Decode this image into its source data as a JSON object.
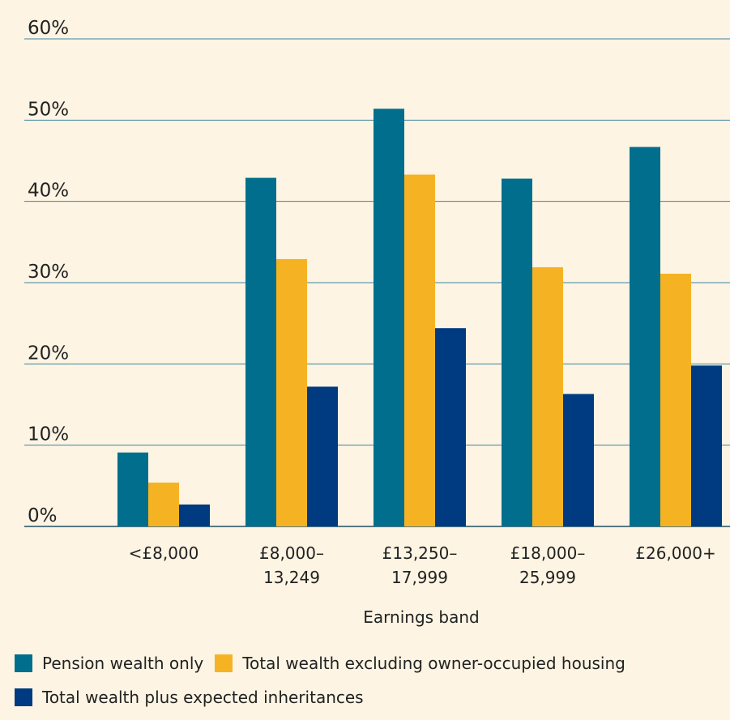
{
  "chart_data": {
    "type": "bar",
    "x_label": "Earnings band",
    "categories": [
      "<£8,000",
      "£8,000–\n13,249",
      "£13,250–\n17,999",
      "£18,000–\n25,999",
      "£26,000+"
    ],
    "series": [
      {
        "name": "Pension wealth only",
        "color": "#006e8c",
        "values": [
          9.1,
          42.9,
          51.4,
          42.8,
          46.7
        ]
      },
      {
        "name": "Total wealth excluding owner-occupied housing",
        "color": "#f5b324",
        "values": [
          5.4,
          32.9,
          43.3,
          31.9,
          31.1
        ]
      },
      {
        "name": "Total wealth plus expected inheritances",
        "color": "#003a80",
        "values": [
          2.7,
          17.2,
          24.4,
          16.3,
          19.8
        ]
      }
    ],
    "ylim": [
      0,
      60
    ],
    "yticks": [
      {
        "value": 0,
        "label": "0%"
      },
      {
        "value": 10,
        "label": "10%"
      },
      {
        "value": 20,
        "label": "20%"
      },
      {
        "value": 30,
        "label": "30%"
      },
      {
        "value": 40,
        "label": "40%"
      },
      {
        "value": 50,
        "label": "50%"
      },
      {
        "value": 60,
        "label": "60%"
      }
    ],
    "grid": true
  }
}
